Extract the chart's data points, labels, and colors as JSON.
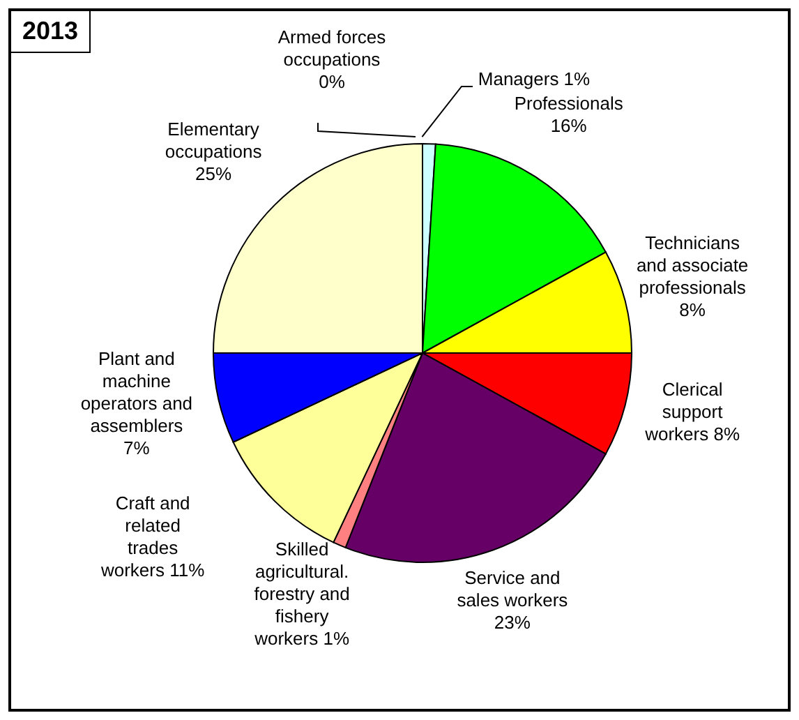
{
  "chart_data": {
    "type": "pie",
    "title": "2013",
    "categories": [
      "Managers",
      "Professionals",
      "Technicians and associate professionals",
      "Clerical support workers",
      "Service and sales workers",
      "Skilled agricultural. forestry and fishery workers",
      "Craft and related trades workers",
      "Plant and machine operators and assemblers",
      "Elementary occupations",
      "Armed forces occupations"
    ],
    "values": [
      1,
      16,
      8,
      8,
      23,
      1,
      11,
      7,
      25,
      0
    ],
    "colors": [
      "#ccffff",
      "#00ff00",
      "#ffff00",
      "#ff0000",
      "#660066",
      "#ff8080",
      "#ffff99",
      "#0000ff",
      "#ffffcc",
      "#000000"
    ],
    "value_labels": [
      "1%",
      "16%",
      "8%",
      "8%",
      "23%",
      "1%",
      "11%",
      "7%",
      "25%",
      "0%"
    ]
  }
}
